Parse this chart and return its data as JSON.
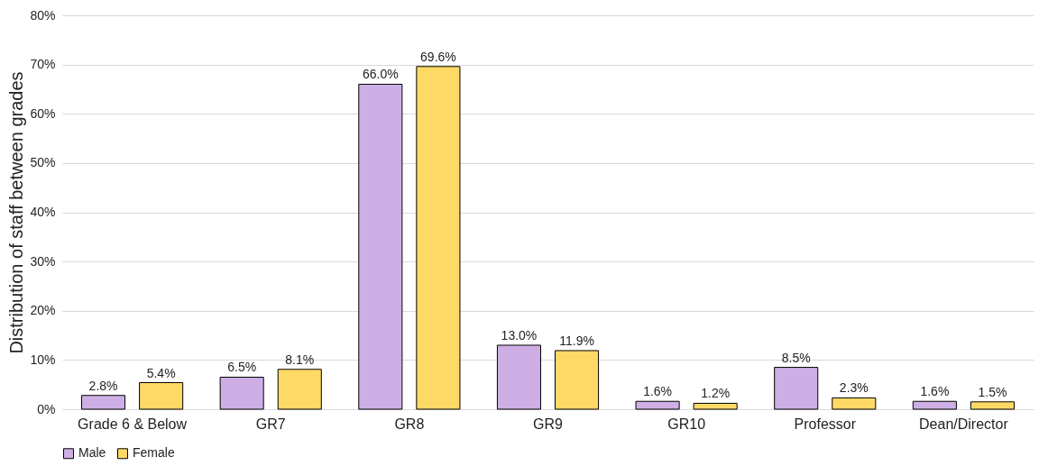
{
  "chart_data": {
    "type": "bar",
    "ylabel": "Distribution of staff between grades",
    "categories": [
      "Grade 6 & Below",
      "GR7",
      "GR8",
      "GR9",
      "GR10",
      "Professor",
      "Dean/Director"
    ],
    "series": [
      {
        "name": "Male",
        "color": "#cdafe6",
        "values": [
          2.8,
          6.5,
          66.0,
          13.0,
          1.6,
          8.5,
          1.6
        ],
        "value_labels": [
          "2.8%",
          "6.5%",
          "66.0%",
          "13.0%",
          "1.6%",
          "8.5%",
          "1.6%"
        ]
      },
      {
        "name": "Female",
        "color": "#ffd966",
        "values": [
          5.4,
          8.1,
          69.6,
          11.9,
          1.2,
          2.3,
          1.5
        ],
        "value_labels": [
          "5.4%",
          "8.1%",
          "69.6%",
          "11.9%",
          "1.2%",
          "2.3%",
          "1.5%"
        ]
      }
    ],
    "ylim": [
      0,
      80
    ],
    "yticks": [
      {
        "value": 0,
        "label": "0%"
      },
      {
        "value": 10,
        "label": "10%"
      },
      {
        "value": 20,
        "label": "20%"
      },
      {
        "value": 30,
        "label": "30%"
      },
      {
        "value": 40,
        "label": "40%"
      },
      {
        "value": 50,
        "label": "50%"
      },
      {
        "value": 60,
        "label": "60%"
      },
      {
        "value": 70,
        "label": "70%"
      },
      {
        "value": 80,
        "label": "80%"
      }
    ],
    "grid": "y",
    "legend": "bottom"
  }
}
